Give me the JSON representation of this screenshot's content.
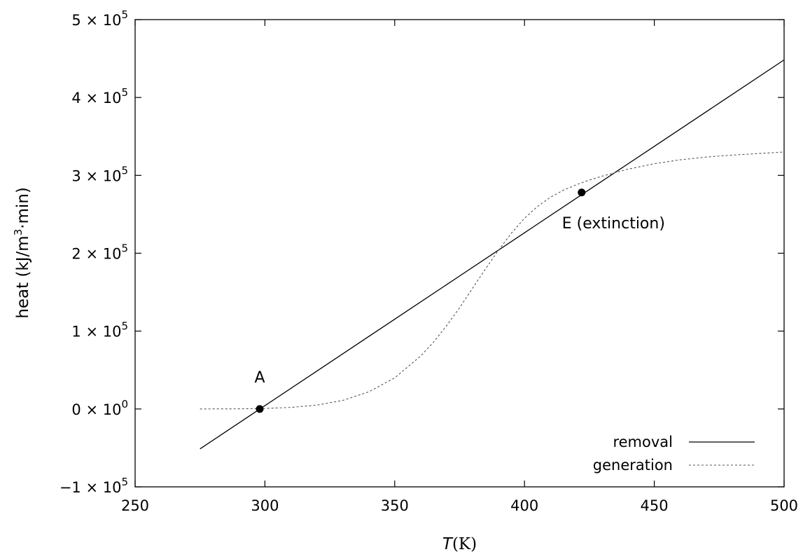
{
  "chart_data": {
    "type": "line",
    "xlabel": {
      "var": "T",
      "unit": "(K)"
    },
    "ylabel": {
      "main": "heat (kJ/m",
      "sup": "3",
      "tail": "·min)"
    },
    "xlim": [
      250,
      500
    ],
    "ylim": [
      -100000,
      500000
    ],
    "x_ticks": [
      250,
      300,
      350,
      400,
      450,
      500
    ],
    "y_ticks": [
      {
        "value": -100000,
        "mantissa": "−1",
        "exp": "5"
      },
      {
        "value": 0,
        "mantissa": "0",
        "exp": "0"
      },
      {
        "value": 100000,
        "mantissa": "1",
        "exp": "5"
      },
      {
        "value": 200000,
        "mantissa": "2",
        "exp": "5"
      },
      {
        "value": 300000,
        "mantissa": "3",
        "exp": "5"
      },
      {
        "value": 400000,
        "mantissa": "4",
        "exp": "5"
      },
      {
        "value": 500000,
        "mantissa": "5",
        "exp": "5"
      }
    ],
    "legend_position": "bottom-right",
    "series": [
      {
        "name": "removal",
        "style": "solid",
        "color": "#000000",
        "x": [
          275,
          300,
          325,
          350,
          375,
          400,
          425,
          450,
          475,
          500
        ],
        "y": [
          -51250,
          4250,
          59750,
          115250,
          170750,
          226250,
          281750,
          337250,
          392750,
          448250
        ]
      },
      {
        "name": "generation",
        "style": "dashed",
        "color": "#555555",
        "x": [
          275,
          290,
          300,
          310,
          320,
          330,
          340,
          350,
          360,
          365,
          370,
          375,
          380,
          385,
          390,
          395,
          400,
          405,
          410,
          415,
          420,
          425,
          430,
          440,
          450,
          460,
          470,
          480,
          490,
          500
        ],
        "y": [
          0,
          200,
          700,
          2000,
          5000,
          11000,
          22000,
          40000,
          68000,
          86000,
          107000,
          130000,
          155000,
          180000,
          204000,
          226000,
          245000,
          260000,
          272000,
          281000,
          288000,
          294000,
          299000,
          308000,
          315000,
          320000,
          323500,
          326000,
          328000,
          330000
        ]
      }
    ],
    "points": [
      {
        "label": "A",
        "x": 298,
        "y": 0,
        "label_pos": "above"
      },
      {
        "label": "E (extinction)",
        "x": 422,
        "y": 278000,
        "label_pos": "below-right"
      }
    ]
  }
}
